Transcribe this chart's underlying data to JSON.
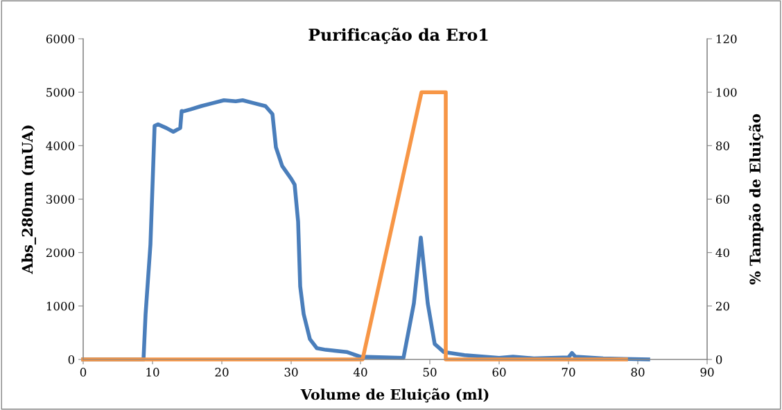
{
  "chart_data": {
    "type": "line",
    "title": "Purificação da Ero1",
    "xlabel": "Volume de Eluição (ml)",
    "ylabel": "Abs_280nm (mUA)",
    "y2label": "% Tampão de Eluição",
    "xlim": [
      0,
      90
    ],
    "xticks": [
      0,
      10,
      20,
      30,
      40,
      50,
      60,
      70,
      80,
      90
    ],
    "ylim": [
      0,
      6000
    ],
    "yticks": [
      0,
      1000,
      2000,
      3000,
      4000,
      5000,
      6000
    ],
    "y2lim": [
      0,
      120
    ],
    "y2ticks": [
      0,
      20,
      40,
      60,
      80,
      100,
      120
    ],
    "grid": false,
    "marker": "none",
    "line_style": "solid",
    "series": [
      {
        "color": "#4a7ebb",
        "x": [
          0,
          8.7,
          9.0,
          9.7,
          10.3,
          10.8,
          12,
          13,
          14,
          14.2,
          14.4,
          15.5,
          17,
          18.5,
          20.3,
          22,
          23,
          24.5,
          26.3,
          27.3,
          27.8,
          28.7,
          30,
          30.5,
          31,
          31.3,
          31.8,
          32.7,
          33.7,
          35,
          38,
          40,
          46.2,
          47.7,
          48.7,
          49.7,
          50.7,
          52,
          55,
          60,
          62,
          65,
          70,
          70.5,
          71,
          75,
          78,
          81.5
        ],
        "values": [
          0,
          0,
          850,
          2150,
          4370,
          4400,
          4330,
          4260,
          4330,
          4650,
          4640,
          4680,
          4740,
          4790,
          4850,
          4830,
          4850,
          4800,
          4740,
          4590,
          3970,
          3620,
          3380,
          3270,
          2580,
          1370,
          850,
          380,
          210,
          180,
          140,
          50,
          30,
          1050,
          2280,
          1050,
          290,
          140,
          80,
          30,
          50,
          20,
          40,
          120,
          50,
          20,
          10,
          0
        ]
      },
      {
        "color": "#f79646",
        "axis": "y2",
        "x": [
          0,
          40.3,
          48.8,
          52.3,
          52.3,
          78.3
        ],
        "values": [
          0,
          0,
          100,
          100,
          0,
          0
        ]
      }
    ]
  }
}
